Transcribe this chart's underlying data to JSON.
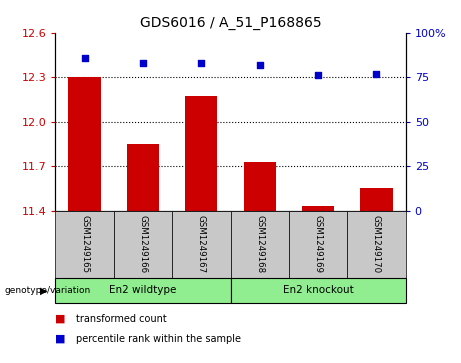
{
  "title": "GDS6016 / A_51_P168865",
  "categories": [
    "GSM1249165",
    "GSM1249166",
    "GSM1249167",
    "GSM1249168",
    "GSM1249169",
    "GSM1249170"
  ],
  "bar_values": [
    12.3,
    11.85,
    12.175,
    11.73,
    11.43,
    11.55
  ],
  "percentile_values": [
    86,
    83,
    83,
    82,
    76,
    77
  ],
  "ymin": 11.4,
  "ymax": 12.6,
  "yticks": [
    11.4,
    11.7,
    12.0,
    12.3,
    12.6
  ],
  "y2min": 0,
  "y2max": 100,
  "y2ticks": [
    0,
    25,
    50,
    75,
    100
  ],
  "bar_color": "#cc0000",
  "dot_color": "#0000cc",
  "bar_width": 0.55,
  "groups": [
    {
      "label": "En2 wildtype",
      "start": 0,
      "end": 3,
      "color": "#90ee90"
    },
    {
      "label": "En2 knockout",
      "start": 3,
      "end": 6,
      "color": "#90ee90"
    }
  ],
  "group_label_prefix": "genotype/variation",
  "left_tick_color": "#cc0000",
  "right_tick_color": "#0000cc",
  "legend_items": [
    "transformed count",
    "percentile rank within the sample"
  ],
  "background_color": "#ffffff",
  "plot_bg_color": "#ffffff",
  "sample_box_color": "#c8c8c8",
  "title_fontsize": 10,
  "tick_fontsize": 8,
  "label_fontsize": 7,
  "legend_fontsize": 7
}
